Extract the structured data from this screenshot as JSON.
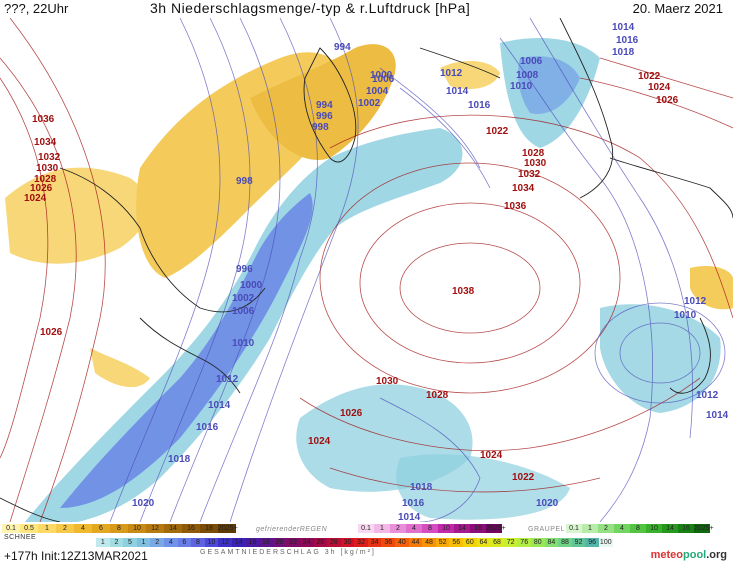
{
  "header": {
    "left": "???, 22Uhr",
    "title": "3h Niederschlagsmenge/-typ & r.Luftdruck [hPa]",
    "date": "20. Maerz 2021"
  },
  "footer": {
    "init": "+177h Init:12Z13MAR2021",
    "brand_a": "meteo",
    "brand_b": "pool",
    "brand_c": ".org"
  },
  "legend": {
    "snow_label": "SCHNEE",
    "snow_values": [
      "0.1",
      "0.5",
      "1",
      "2",
      "4",
      "6",
      "8",
      "10",
      "12",
      "14",
      "16",
      "18",
      "2025+"
    ],
    "snow_colors": [
      "#fff3b0",
      "#ffe680",
      "#ffd966",
      "#f7c948",
      "#efb92e",
      "#e3a822",
      "#d79a1a",
      "#c98a14",
      "#b67a10",
      "#a36a0c",
      "#8f5b09",
      "#7a4c06",
      "#5e3a04"
    ],
    "freezing_label": "gefrierenderREGEN",
    "freezing_values": [
      "0.1",
      "1",
      "2",
      "4",
      "8",
      "10",
      "14",
      "16",
      "2025+"
    ],
    "freezing_colors": [
      "#f8d8f0",
      "#f2b8e6",
      "#ea90d8",
      "#e070cc",
      "#d44ec0",
      "#c02aa8",
      "#a61890",
      "#8c0c78",
      "#700460"
    ],
    "graupel_label": "GRAUPEL",
    "graupel_values": [
      "0.1",
      "1",
      "2",
      "4",
      "8",
      "10",
      "14",
      "16",
      "2025+"
    ],
    "graupel_colors": [
      "#d8f5d0",
      "#b8ecaa",
      "#96e084",
      "#74d462",
      "#52c442",
      "#38b02c",
      "#26981e",
      "#1a8016",
      "#0f680c"
    ],
    "total_values": [
      "1",
      "2",
      "5",
      "1",
      "2",
      "4",
      "6",
      "8",
      "10",
      "12",
      "14",
      "16",
      "18",
      "20",
      "22",
      "24",
      "26",
      "28",
      "30",
      "32",
      "34",
      "36",
      "40",
      "44",
      "48",
      "52",
      "56",
      "60",
      "64",
      "68",
      "72",
      "76",
      "80",
      "84",
      "88",
      "92",
      "96",
      "100"
    ],
    "total_colors": [
      "#bfe9ec",
      "#a2dde4",
      "#8ecfe0",
      "#7fbfe0",
      "#7aa9e6",
      "#6f92ea",
      "#6a7ce8",
      "#5f63e0",
      "#4d48d6",
      "#3c30c8",
      "#3a22b4",
      "#4a1aa0",
      "#5c148c",
      "#6e1078",
      "#7e0c66",
      "#8e0a56",
      "#a40a46",
      "#bb0c36",
      "#cf1228",
      "#df1c1c",
      "#e83214",
      "#ef4a0e",
      "#f3620a",
      "#f67a08",
      "#f89206",
      "#f8aa06",
      "#f6c006",
      "#f2d40a",
      "#eae212",
      "#dceb20",
      "#c8ef30",
      "#b2ee44",
      "#9ae85a",
      "#84df70",
      "#70d486",
      "#60c69a",
      "#54b6aa",
      "#e9f7f0"
    ],
    "total_label": "GESAMTNIEDERSCHLAG 3h [kg/m²]"
  },
  "isobar_labels": [
    {
      "text": "994",
      "color": "#4a4ab8"
    },
    {
      "text": "994",
      "color": "#4a4ab8"
    },
    {
      "text": "996",
      "color": "#4a4ab8"
    },
    {
      "text": "998",
      "color": "#4a4ab8"
    },
    {
      "text": "998",
      "color": "#4a4ab8"
    },
    {
      "text": "1000",
      "color": "#4a4ab8"
    },
    {
      "text": "1002",
      "color": "#4a4ab8"
    },
    {
      "text": "1004",
      "color": "#4a4ab8"
    },
    {
      "text": "1006",
      "color": "#4a4ab8"
    },
    {
      "text": "996",
      "color": "#4a4ab8"
    },
    {
      "text": "1000",
      "color": "#4a4ab8"
    },
    {
      "text": "1002",
      "color": "#4a4ab8"
    },
    {
      "text": "1006",
      "color": "#4a4ab8"
    },
    {
      "text": "1010",
      "color": "#4a4ab8"
    },
    {
      "text": "1012",
      "color": "#4a4ab8"
    },
    {
      "text": "1014",
      "color": "#4a4ab8"
    },
    {
      "text": "1016",
      "color": "#4a4ab8"
    },
    {
      "text": "1018",
      "color": "#4a4ab8"
    },
    {
      "text": "1020",
      "color": "#4a4ab8"
    },
    {
      "text": "1012",
      "color": "#4a4ab8"
    },
    {
      "text": "1014",
      "color": "#4a4ab8"
    },
    {
      "text": "1016",
      "color": "#4a4ab8"
    },
    {
      "text": "1006",
      "color": "#4a4ab8"
    },
    {
      "text": "1008",
      "color": "#4a4ab8"
    },
    {
      "text": "1010",
      "color": "#4a4ab8"
    },
    {
      "text": "1014",
      "color": "#4a4ab8"
    },
    {
      "text": "1016",
      "color": "#4a4ab8"
    },
    {
      "text": "1018",
      "color": "#4a4ab8"
    },
    {
      "text": "1012",
      "color": "#4a4ab8"
    },
    {
      "text": "1010",
      "color": "#4a4ab8"
    },
    {
      "text": "1012",
      "color": "#4a4ab8"
    },
    {
      "text": "1014",
      "color": "#4a4ab8"
    },
    {
      "text": "1018",
      "color": "#4a4ab8"
    },
    {
      "text": "1016",
      "color": "#4a4ab8"
    },
    {
      "text": "1014",
      "color": "#4a4ab8"
    },
    {
      "text": "1020",
      "color": "#4a4ab8"
    },
    {
      "text": "1036",
      "color": "#a01010"
    },
    {
      "text": "1034",
      "color": "#a01010"
    },
    {
      "text": "1032",
      "color": "#a01010"
    },
    {
      "text": "1030",
      "color": "#a01010"
    },
    {
      "text": "1028",
      "color": "#a01010"
    },
    {
      "text": "1026",
      "color": "#a01010"
    },
    {
      "text": "1024",
      "color": "#a01010"
    },
    {
      "text": "1026",
      "color": "#a01010"
    },
    {
      "text": "1022",
      "color": "#a01010"
    },
    {
      "text": "1028",
      "color": "#a01010"
    },
    {
      "text": "1030",
      "color": "#a01010"
    },
    {
      "text": "1032",
      "color": "#a01010"
    },
    {
      "text": "1034",
      "color": "#a01010"
    },
    {
      "text": "1036",
      "color": "#a01010"
    },
    {
      "text": "1038",
      "color": "#a01010"
    },
    {
      "text": "1022",
      "color": "#a01010"
    },
    {
      "text": "1024",
      "color": "#a01010"
    },
    {
      "text": "1026",
      "color": "#a01010"
    },
    {
      "text": "1030",
      "color": "#a01010"
    },
    {
      "text": "1028",
      "color": "#a01010"
    },
    {
      "text": "1026",
      "color": "#a01010"
    },
    {
      "text": "1024",
      "color": "#a01010"
    },
    {
      "text": "1024",
      "color": "#a01010"
    },
    {
      "text": "1022",
      "color": "#a01010"
    }
  ]
}
